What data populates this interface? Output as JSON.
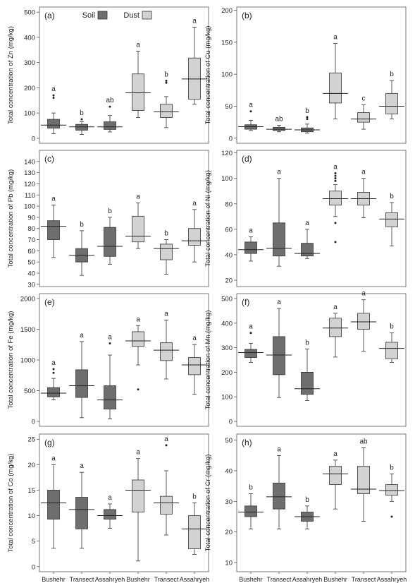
{
  "figure": {
    "legend": {
      "soil": "Soil",
      "dust": "Dust"
    },
    "colors": {
      "soil": "#6e6e6e",
      "dust": "#d2d2d2",
      "axis": "#555555",
      "text": "#222222"
    },
    "x_labels": [
      "Bushehr",
      "Transect",
      "Assahryeh",
      "Bushehr",
      "Transect",
      "Assahryeh"
    ]
  },
  "chart_data": [
    {
      "type": "box",
      "panel_label": "(a)",
      "ylabel": "Total concentration of Zn (mg/kg)",
      "ylim": [
        -20,
        520
      ],
      "yticks": [
        0,
        100,
        200,
        300,
        400,
        500
      ],
      "groups": [
        {
          "medium": "Soil",
          "site": "Bushehr",
          "min": 18,
          "q1": 40,
          "median": 52,
          "q3": 75,
          "max": 100,
          "outliers": [
            160,
            170
          ],
          "letter": "a"
        },
        {
          "medium": "Soil",
          "site": "Transect",
          "min": 15,
          "q1": 32,
          "median": 45,
          "q3": 55,
          "max": 65,
          "outliers": [
            75
          ],
          "letter": "b"
        },
        {
          "medium": "Soil",
          "site": "Assahryeh",
          "min": 25,
          "q1": 35,
          "median": 45,
          "q3": 65,
          "max": 90,
          "outliers": [
            125
          ],
          "letter": "ab"
        },
        {
          "medium": "Dust",
          "site": "Bushehr",
          "min": 82,
          "q1": 110,
          "median": 180,
          "q3": 255,
          "max": 345,
          "outliers": [],
          "letter": "a"
        },
        {
          "medium": "Dust",
          "site": "Transect",
          "min": 42,
          "q1": 82,
          "median": 105,
          "q3": 135,
          "max": 165,
          "outliers": [
            220,
            228
          ],
          "letter": "b"
        },
        {
          "medium": "Dust",
          "site": "Assahryeh",
          "min": 135,
          "q1": 155,
          "median": 235,
          "q3": 318,
          "max": 440,
          "outliers": [],
          "letter": "a"
        }
      ]
    },
    {
      "type": "box",
      "panel_label": "(b)",
      "ylabel": "Total concentration of Cu (mg/kg)",
      "ylim": [
        -8,
        205
      ],
      "yticks": [
        0,
        50,
        100,
        150,
        200
      ],
      "groups": [
        {
          "medium": "Soil",
          "site": "Bushehr",
          "min": 12,
          "q1": 14,
          "median": 18,
          "q3": 21,
          "max": 28,
          "outliers": [
            42
          ],
          "letter": "a"
        },
        {
          "medium": "Soil",
          "site": "Transect",
          "min": 10,
          "q1": 12,
          "median": 14,
          "q3": 17,
          "max": 20,
          "outliers": [],
          "letter": "ab"
        },
        {
          "medium": "Soil",
          "site": "Assahryeh",
          "min": 8,
          "q1": 10,
          "median": 13,
          "q3": 16,
          "max": 22,
          "outliers": [
            30,
            33
          ],
          "letter": "b"
        },
        {
          "medium": "Dust",
          "site": "Bushehr",
          "min": 30,
          "q1": 55,
          "median": 70,
          "q3": 102,
          "max": 148,
          "outliers": [],
          "letter": "a"
        },
        {
          "medium": "Dust",
          "site": "Transect",
          "min": 14,
          "q1": 25,
          "median": 30,
          "q3": 40,
          "max": 52,
          "outliers": [],
          "letter": "c"
        },
        {
          "medium": "Dust",
          "site": "Assahryeh",
          "min": 30,
          "q1": 38,
          "median": 50,
          "q3": 70,
          "max": 90,
          "outliers": [],
          "letter": "b"
        }
      ]
    },
    {
      "type": "box",
      "panel_label": "(c)",
      "ylabel": "Total concentration of Pb (mg/kg)",
      "ylim": [
        28,
        150
      ],
      "yticks": [
        30,
        40,
        50,
        60,
        70,
        80,
        90,
        100,
        110,
        120,
        130,
        140
      ],
      "groups": [
        {
          "medium": "Soil",
          "site": "Bushehr",
          "min": 54,
          "q1": 70,
          "median": 82,
          "q3": 87,
          "max": 101,
          "outliers": [],
          "letter": "a"
        },
        {
          "medium": "Soil",
          "site": "Transect",
          "min": 38,
          "q1": 50,
          "median": 56,
          "q3": 62,
          "max": 78,
          "outliers": [],
          "letter": "b"
        },
        {
          "medium": "Soil",
          "site": "Assahryeh",
          "min": 48,
          "q1": 55,
          "median": 64,
          "q3": 81,
          "max": 90,
          "outliers": [],
          "letter": "b"
        },
        {
          "medium": "Dust",
          "site": "Bushehr",
          "min": 62,
          "q1": 68,
          "median": 73,
          "q3": 91,
          "max": 103,
          "outliers": [],
          "letter": "a"
        },
        {
          "medium": "Dust",
          "site": "Transect",
          "min": 39,
          "q1": 52,
          "median": 62,
          "q3": 66,
          "max": 70,
          "outliers": [],
          "letter": "b"
        },
        {
          "medium": "Dust",
          "site": "Assahryeh",
          "min": 50,
          "q1": 65,
          "median": 69,
          "q3": 80,
          "max": 97,
          "outliers": [],
          "letter": "a"
        }
      ]
    },
    {
      "type": "box",
      "panel_label": "(d)",
      "ylabel": "Total concentration of Ni (mg/kg)",
      "ylim": [
        15,
        122
      ],
      "yticks": [
        20,
        40,
        60,
        80,
        100,
        120
      ],
      "groups": [
        {
          "medium": "Soil",
          "site": "Bushehr",
          "min": 35,
          "q1": 41,
          "median": 44,
          "q3": 50,
          "max": 54,
          "outliers": [],
          "letter": "a"
        },
        {
          "medium": "Soil",
          "site": "Transect",
          "min": 31,
          "q1": 39,
          "median": 45,
          "q3": 65,
          "max": 100,
          "outliers": [],
          "letter": "a"
        },
        {
          "medium": "Soil",
          "site": "Assahryeh",
          "min": 37,
          "q1": 39,
          "median": 41,
          "q3": 49,
          "max": 60,
          "outliers": [],
          "letter": "a"
        },
        {
          "medium": "Dust",
          "site": "Bushehr",
          "min": 70,
          "q1": 79,
          "median": 84,
          "q3": 90,
          "max": 95,
          "outliers": [
            50,
            65,
            98,
            100,
            102,
            104
          ],
          "letter": "a"
        },
        {
          "medium": "Dust",
          "site": "Transect",
          "min": 69,
          "q1": 79,
          "median": 84,
          "q3": 89,
          "max": 100,
          "outliers": [],
          "letter": "a"
        },
        {
          "medium": "Dust",
          "site": "Assahryeh",
          "min": 47,
          "q1": 62,
          "median": 68,
          "q3": 73,
          "max": 81,
          "outliers": [],
          "letter": "b"
        }
      ]
    },
    {
      "type": "box",
      "panel_label": "(e)",
      "ylabel": "Total concentration of Fe (mg/kg)",
      "ylim": [
        -80,
        2080
      ],
      "yticks": [
        0,
        500,
        1000,
        1500,
        2000
      ],
      "groups": [
        {
          "medium": "Soil",
          "site": "Bushehr",
          "min": 350,
          "q1": 400,
          "median": 460,
          "q3": 550,
          "max": 700,
          "outliers": [
            790,
            850
          ],
          "letter": "a"
        },
        {
          "medium": "Soil",
          "site": "Transect",
          "min": 60,
          "q1": 390,
          "median": 580,
          "q3": 840,
          "max": 1300,
          "outliers": [],
          "letter": "a"
        },
        {
          "medium": "Soil",
          "site": "Assahryeh",
          "min": 40,
          "q1": 200,
          "median": 350,
          "q3": 580,
          "max": 1080,
          "outliers": [
            1270
          ],
          "letter": "a"
        },
        {
          "medium": "Dust",
          "site": "Bushehr",
          "min": 920,
          "q1": 1220,
          "median": 1310,
          "q3": 1460,
          "max": 1560,
          "outliers": [
            520
          ],
          "letter": "a"
        },
        {
          "medium": "Dust",
          "site": "Transect",
          "min": 690,
          "q1": 990,
          "median": 1160,
          "q3": 1280,
          "max": 1650,
          "outliers": [],
          "letter": "a"
        },
        {
          "medium": "Dust",
          "site": "Assahryeh",
          "min": 440,
          "q1": 760,
          "median": 920,
          "q3": 1040,
          "max": 1250,
          "outliers": [],
          "letter": "a"
        }
      ]
    },
    {
      "type": "box",
      "panel_label": "(f)",
      "ylabel": "Total concentration of Mn (mg/kg)",
      "ylim": [
        -20,
        520
      ],
      "yticks": [
        0,
        100,
        200,
        300,
        400,
        500
      ],
      "groups": [
        {
          "medium": "Soil",
          "site": "Bushehr",
          "min": 240,
          "q1": 260,
          "median": 280,
          "q3": 293,
          "max": 318,
          "outliers": [
            360
          ],
          "letter": "a"
        },
        {
          "medium": "Soil",
          "site": "Transect",
          "min": 97,
          "q1": 190,
          "median": 270,
          "q3": 345,
          "max": 460,
          "outliers": [],
          "letter": "a"
        },
        {
          "medium": "Soil",
          "site": "Assahryeh",
          "min": 85,
          "q1": 110,
          "median": 133,
          "q3": 200,
          "max": 295,
          "outliers": [],
          "letter": "b"
        },
        {
          "medium": "Dust",
          "site": "Bushehr",
          "min": 262,
          "q1": 345,
          "median": 380,
          "q3": 420,
          "max": 440,
          "outliers": [],
          "letter": "a"
        },
        {
          "medium": "Dust",
          "site": "Transect",
          "min": 285,
          "q1": 375,
          "median": 405,
          "q3": 440,
          "max": 495,
          "outliers": [],
          "letter": "a"
        },
        {
          "medium": "Dust",
          "site": "Assahryeh",
          "min": 240,
          "q1": 255,
          "median": 297,
          "q3": 322,
          "max": 360,
          "outliers": [],
          "letter": "b"
        }
      ]
    },
    {
      "type": "box",
      "panel_label": "(g)",
      "ylabel": "Total concentration of Co (mg/kg)",
      "ylim": [
        -1,
        26
      ],
      "yticks": [
        0,
        5,
        10,
        15,
        20,
        25
      ],
      "groups": [
        {
          "medium": "Soil",
          "site": "Bushehr",
          "min": 3.6,
          "q1": 9.3,
          "median": 12.5,
          "q3": 15,
          "max": 20,
          "outliers": [],
          "letter": "a"
        },
        {
          "medium": "Soil",
          "site": "Transect",
          "min": 3.6,
          "q1": 7.4,
          "median": 11.2,
          "q3": 13.6,
          "max": 18.5,
          "outliers": [],
          "letter": "a"
        },
        {
          "medium": "Soil",
          "site": "Assahryeh",
          "min": 7.5,
          "q1": 9.3,
          "median": 10,
          "q3": 11.2,
          "max": 12.3,
          "outliers": [],
          "letter": "a"
        },
        {
          "medium": "Dust",
          "site": "Bushehr",
          "min": 1.1,
          "q1": 10.7,
          "median": 15,
          "q3": 17,
          "max": 21.2,
          "outliers": [],
          "letter": "a"
        },
        {
          "medium": "Dust",
          "site": "Transect",
          "min": 6.2,
          "q1": 10.3,
          "median": 12.5,
          "q3": 13.8,
          "max": 18.8,
          "outliers": [
            23.8
          ],
          "letter": "a"
        },
        {
          "medium": "Dust",
          "site": "Assahryeh",
          "min": 2.4,
          "q1": 3.5,
          "median": 7.4,
          "q3": 10,
          "max": 12.5,
          "outliers": [],
          "letter": "b"
        }
      ]
    },
    {
      "type": "box",
      "panel_label": "(h)",
      "ylabel": "Total concentration of Cr (mg/kg)",
      "ylim": [
        7,
        52
      ],
      "yticks": [
        10,
        20,
        30,
        40,
        50
      ],
      "groups": [
        {
          "medium": "Soil",
          "site": "Bushehr",
          "min": 21,
          "q1": 25,
          "median": 26.5,
          "q3": 28.5,
          "max": 32.5,
          "outliers": [],
          "letter": "b"
        },
        {
          "medium": "Soil",
          "site": "Transect",
          "min": 21,
          "q1": 27.5,
          "median": 31.5,
          "q3": 36,
          "max": 45,
          "outliers": [],
          "letter": "a"
        },
        {
          "medium": "Soil",
          "site": "Assahryeh",
          "min": 21,
          "q1": 23.5,
          "median": 25,
          "q3": 26.5,
          "max": 28.5,
          "outliers": [],
          "letter": "b"
        },
        {
          "medium": "Dust",
          "site": "Bushehr",
          "min": 27.5,
          "q1": 35.5,
          "median": 39,
          "q3": 41.5,
          "max": 43.5,
          "outliers": [],
          "letter": "a"
        },
        {
          "medium": "Dust",
          "site": "Transect",
          "min": 23.5,
          "q1": 32.5,
          "median": 34,
          "q3": 41.5,
          "max": 47.5,
          "outliers": [],
          "letter": "ab"
        },
        {
          "medium": "Dust",
          "site": "Assahryeh",
          "min": 30,
          "q1": 32,
          "median": 33.5,
          "q3": 35.5,
          "max": 39,
          "outliers": [
            25
          ],
          "letter": "b"
        }
      ]
    }
  ]
}
